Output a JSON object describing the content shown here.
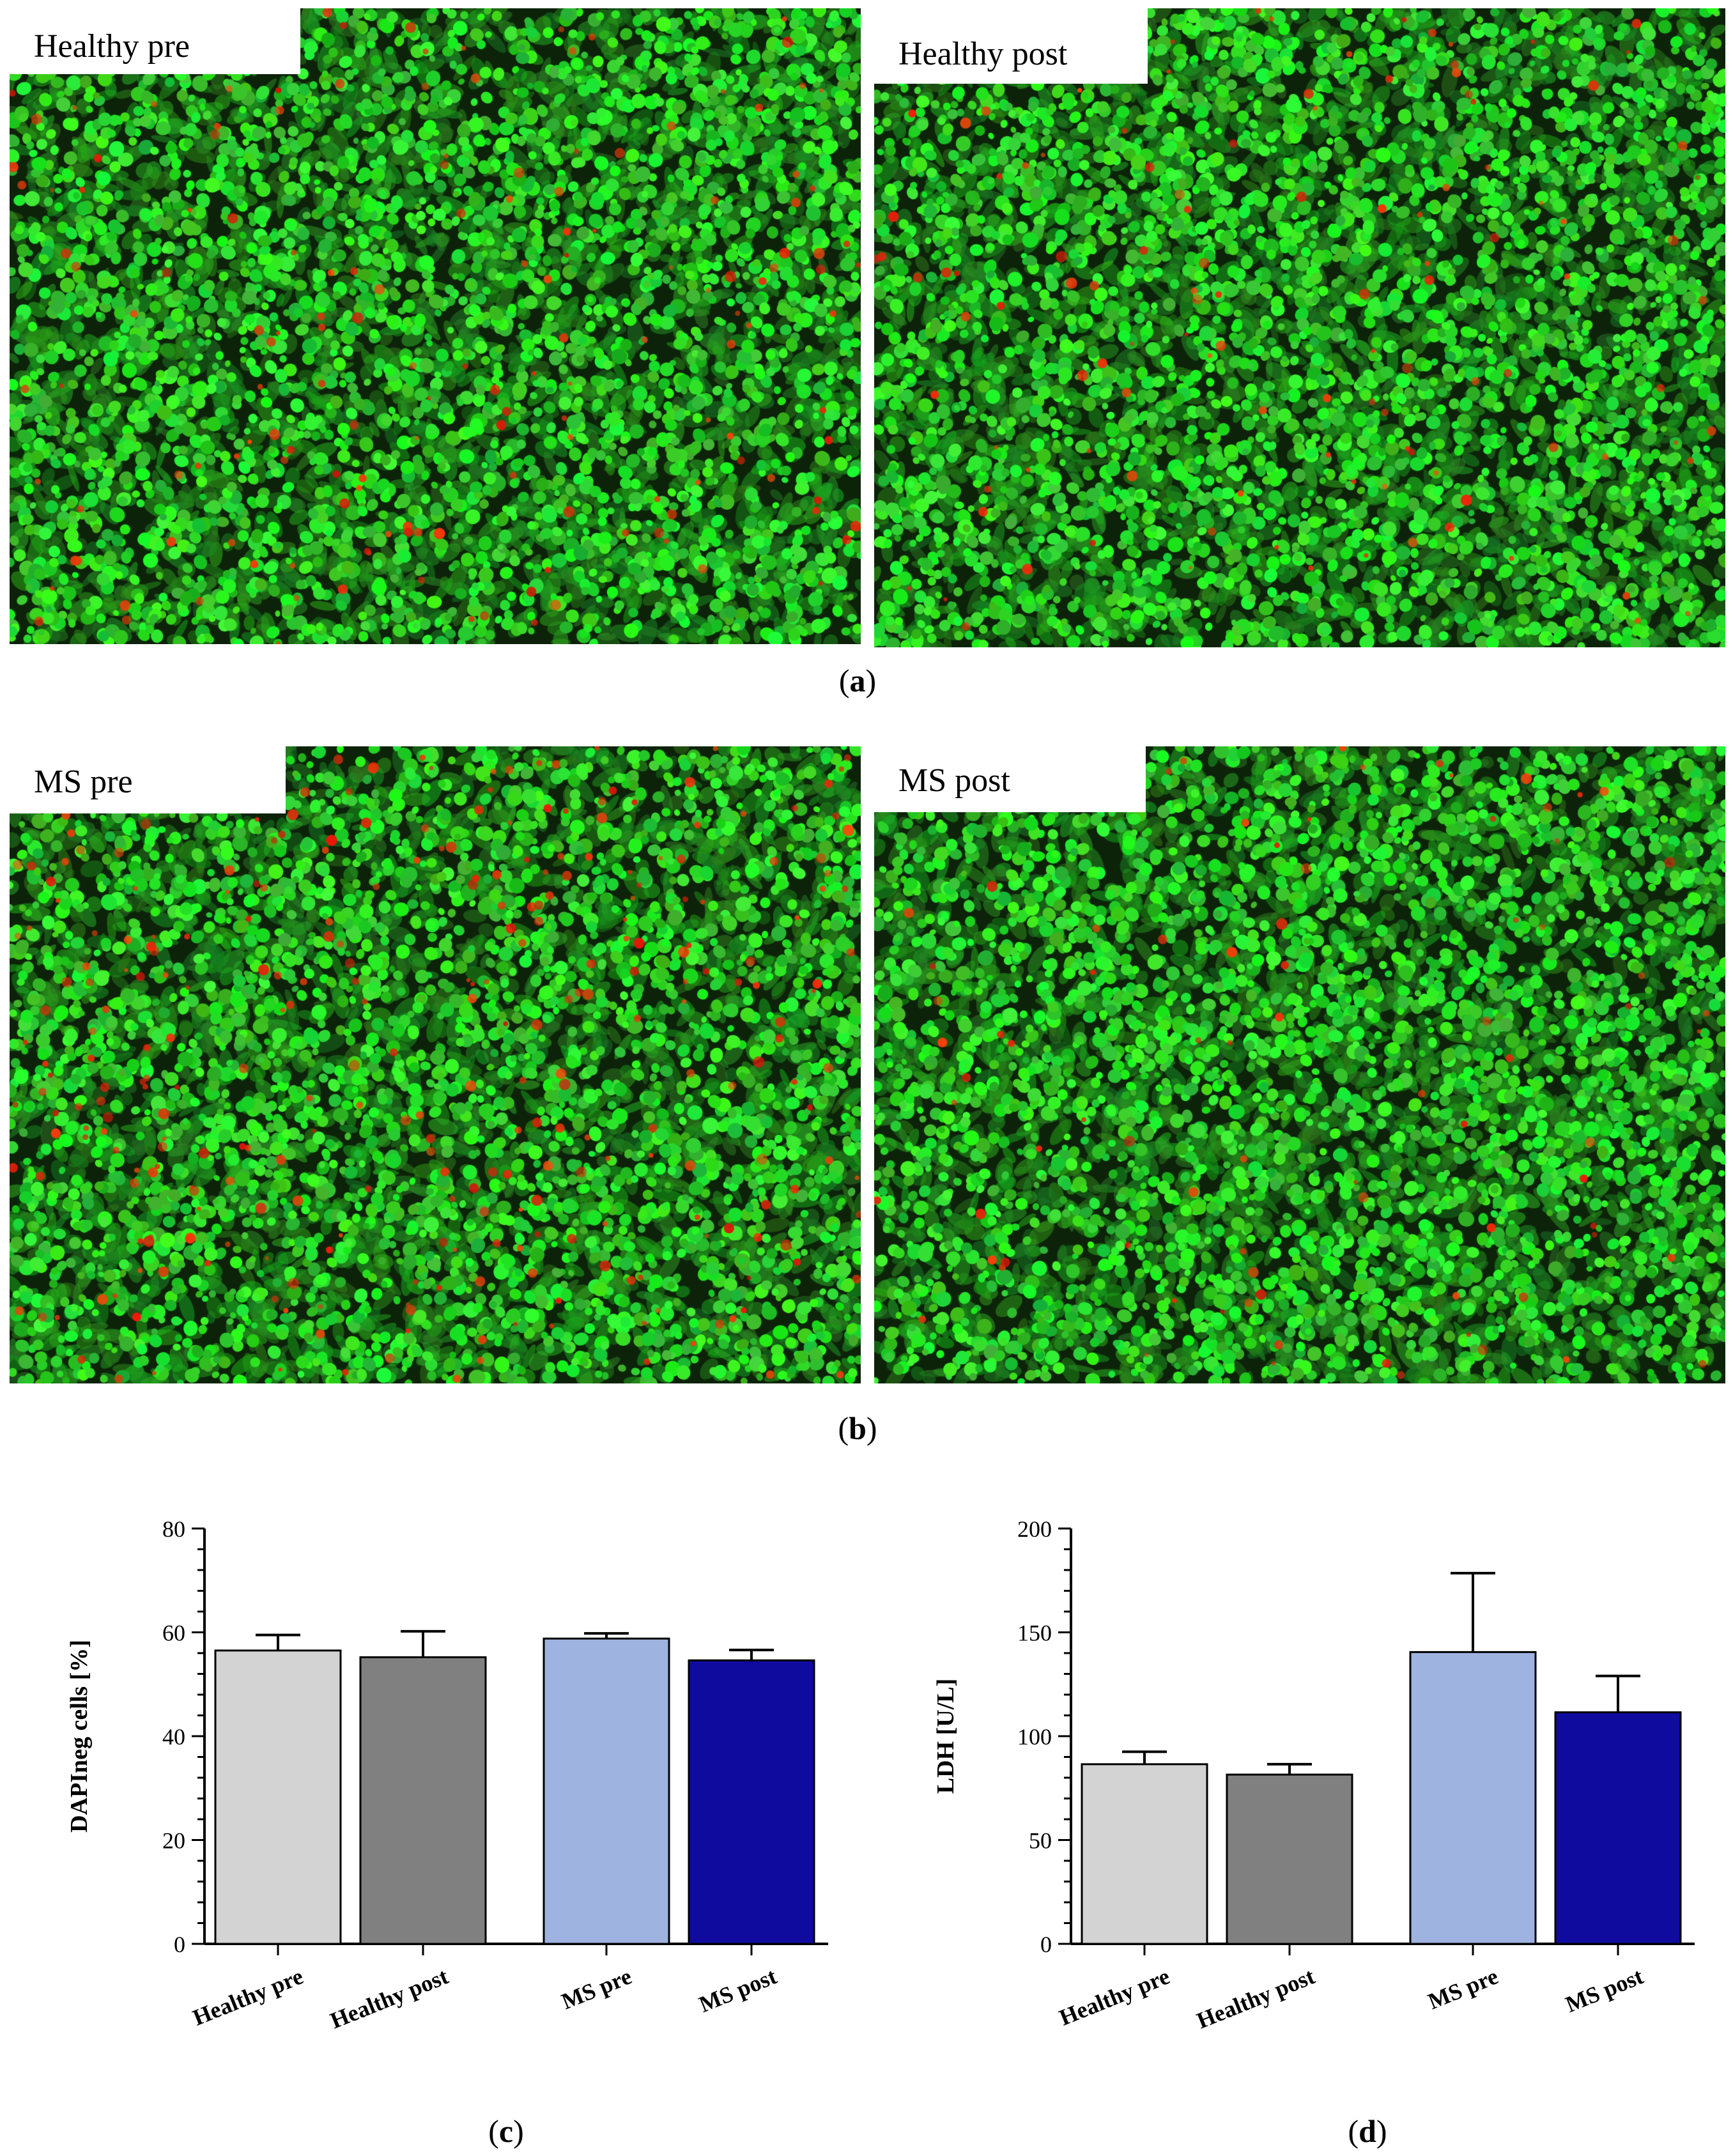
{
  "images": [
    {
      "label": "Healthy pre",
      "seed": 11,
      "red_density": 0.05
    },
    {
      "label": "Healthy post",
      "seed": 23,
      "red_density": 0.035
    },
    {
      "label": "MS pre",
      "seed": 37,
      "red_density": 0.09
    },
    {
      "label": "MS post",
      "seed": 51,
      "red_density": 0.025
    }
  ],
  "panel_labels": {
    "a": "a",
    "b": "b",
    "c": "c",
    "d": "d"
  },
  "colors": {
    "healthy_pre": "#d3d3d3",
    "healthy_post": "#808080",
    "ms_pre": "#9fb3e0",
    "ms_post": "#0f0b9e",
    "cell_green": "#22dd22",
    "cell_red": "#ee2a10"
  },
  "chart_data": [
    {
      "type": "bar",
      "categories": [
        "Healthy pre",
        "Healthy post",
        "MS pre",
        "MS post"
      ],
      "values": [
        56.5,
        55.2,
        58.8,
        54.6
      ],
      "errors": [
        3.0,
        5.0,
        1.0,
        2.0
      ],
      "ylabel": "DAPIneg cells [%]",
      "xlabel": "",
      "ylim": [
        0,
        80
      ],
      "yticks": [
        0,
        20,
        40,
        60,
        80
      ],
      "colors": [
        "#d3d3d3",
        "#808080",
        "#9fb3e0",
        "#0f0b9e"
      ],
      "legend": "none",
      "grid": false
    },
    {
      "type": "bar",
      "categories": [
        "Healthy pre",
        "Healthy post",
        "MS pre",
        "MS post"
      ],
      "values": [
        86.5,
        81.5,
        140.5,
        111.5
      ],
      "errors": [
        6.0,
        5.0,
        38.0,
        17.5
      ],
      "ylabel": "LDH [U/L]",
      "xlabel": "",
      "ylim": [
        0,
        200
      ],
      "yticks": [
        0,
        50,
        100,
        150,
        200
      ],
      "colors": [
        "#d3d3d3",
        "#808080",
        "#9fb3e0",
        "#0f0b9e"
      ],
      "legend": "none",
      "grid": false
    }
  ]
}
